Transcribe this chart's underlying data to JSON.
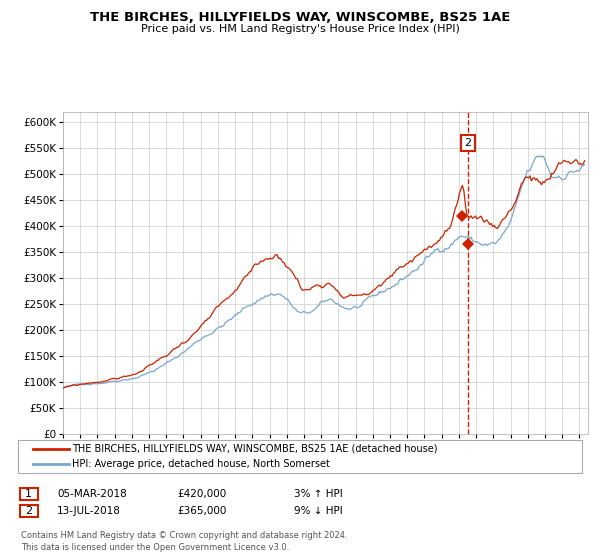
{
  "title": "THE BIRCHES, HILLYFIELDS WAY, WINSCOMBE, BS25 1AE",
  "subtitle": "Price paid vs. HM Land Registry's House Price Index (HPI)",
  "ylim": [
    0,
    620000
  ],
  "yticks": [
    0,
    50000,
    100000,
    150000,
    200000,
    250000,
    300000,
    350000,
    400000,
    450000,
    500000,
    550000,
    600000
  ],
  "hpi_color": "#7ba7cc",
  "price_color": "#cc2200",
  "marker_color": "#cc2200",
  "grid_color": "#cccccc",
  "background_color": "#ffffff",
  "annotation_box_color": "#cc2200",
  "dashed_line_color": "#cc2200",
  "sale1": {
    "date_num": 2018.17,
    "price": 420000,
    "label": "1",
    "date_str": "05-MAR-2018",
    "pct": "3%",
    "dir": "↑"
  },
  "sale2": {
    "date_num": 2018.53,
    "price": 365000,
    "label": "2",
    "date_str": "13-JUL-2018",
    "pct": "9%",
    "dir": "↓"
  },
  "legend_label_red": "THE BIRCHES, HILLYFIELDS WAY, WINSCOMBE, BS25 1AE (detached house)",
  "legend_label_blue": "HPI: Average price, detached house, North Somerset",
  "footer": "Contains HM Land Registry data © Crown copyright and database right 2024.\nThis data is licensed under the Open Government Licence v3.0.",
  "xstart": 1995.0,
  "xend": 2025.5
}
